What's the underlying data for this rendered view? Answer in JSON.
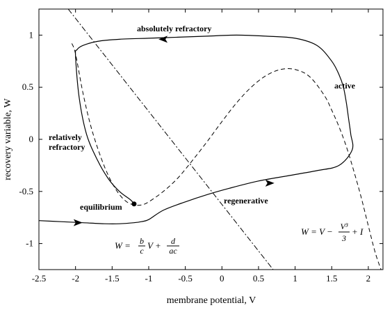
{
  "chart_data": {
    "type": "line",
    "title": "",
    "xlabel": "membrane potential, V",
    "ylabel": "recovery variable, W",
    "xlim": [
      -2.5,
      2.2
    ],
    "ylim": [
      -1.25,
      1.25
    ],
    "xticks": [
      -2.5,
      -2,
      -1.5,
      -1,
      -0.5,
      0,
      0.5,
      1,
      1.5,
      2
    ],
    "xtick_labels": [
      "-2.5",
      "-2",
      "-1.5",
      "-1",
      "-0.5",
      "0",
      "0.5",
      "1",
      "1.5",
      "2"
    ],
    "yticks": [
      -1,
      -0.5,
      0,
      0.5,
      1
    ],
    "ytick_labels": [
      "-1",
      "-0.5",
      "0",
      "0.5",
      "1"
    ],
    "grid": false,
    "series": [
      {
        "role": "trajectory",
        "style": "solid",
        "x": [
          -2.5,
          -2.2,
          -1.9,
          -1.6,
          -1.4,
          -1.2,
          -1.1,
          -1.0,
          -0.8,
          -0.5,
          -0.2,
          0.1,
          0.5,
          0.9,
          1.3,
          1.6,
          1.78,
          1.76,
          1.73,
          1.7,
          1.66,
          1.6,
          1.5,
          1.3,
          1.0,
          0.6,
          0.2,
          -0.2,
          -0.6,
          -1.0,
          -1.4,
          -1.7,
          -1.9,
          -1.98,
          -2.0,
          -1.95,
          -1.85,
          -1.7,
          -1.55,
          -1.4,
          -1.25,
          -1.2
        ],
        "y": [
          -0.78,
          -0.79,
          -0.8,
          -0.81,
          -0.81,
          -0.8,
          -0.79,
          -0.77,
          -0.68,
          -0.6,
          -0.53,
          -0.47,
          -0.4,
          -0.35,
          -0.3,
          -0.25,
          -0.1,
          0.05,
          0.2,
          0.35,
          0.5,
          0.62,
          0.75,
          0.9,
          0.97,
          0.99,
          1.0,
          0.99,
          0.98,
          0.97,
          0.96,
          0.94,
          0.9,
          0.86,
          0.8,
          0.4,
          0.05,
          -0.2,
          -0.38,
          -0.5,
          -0.58,
          -0.62
        ]
      },
      {
        "role": "V-nullcline",
        "style": "dashed",
        "equation": "W = V - V^3/3 + I",
        "x": [
          -2.05,
          -2.0,
          -1.9,
          -1.8,
          -1.7,
          -1.6,
          -1.5,
          -1.4,
          -1.3,
          -1.2,
          -1.1,
          -1.0,
          -0.8,
          -0.6,
          -0.4,
          -0.2,
          0.0,
          0.2,
          0.4,
          0.6,
          0.8,
          1.0,
          1.2,
          1.4,
          1.5,
          1.6,
          1.7,
          1.8,
          1.9,
          2.0,
          2.1,
          2.2
        ],
        "y": [
          0.92,
          0.82,
          0.45,
          0.15,
          -0.08,
          -0.27,
          -0.42,
          -0.53,
          -0.6,
          -0.63,
          -0.63,
          -0.6,
          -0.5,
          -0.37,
          -0.2,
          -0.02,
          0.17,
          0.35,
          0.5,
          0.61,
          0.67,
          0.67,
          0.6,
          0.42,
          0.28,
          0.12,
          -0.07,
          -0.3,
          -0.55,
          -0.83,
          -1.1,
          -1.3
        ]
      },
      {
        "role": "W-nullcline",
        "style": "dash-dot",
        "equation": "W = (b/c)V + d/(ac)",
        "x": [
          -2.1,
          0.7
        ],
        "y": [
          1.25,
          -1.25
        ]
      }
    ],
    "points": [
      {
        "label": "equilibrium",
        "x": -1.2,
        "y": -0.62
      }
    ],
    "arrows": [
      {
        "x": -1.97,
        "y": -0.8,
        "direction": "right"
      },
      {
        "x": 0.65,
        "y": -0.42,
        "direction": "right"
      },
      {
        "x": -0.8,
        "y": 0.96,
        "direction": "left"
      }
    ],
    "annotations": {
      "absolutely_refractory": "absolutely refractory",
      "active": "active",
      "relatively": "relatively",
      "refractory": "refractory",
      "equilibrium": "equilibrium",
      "regenerative": "regenerative"
    },
    "equations": {
      "w_nullcline": {
        "lhs": "W =",
        "frac1_num": "b",
        "frac1_den": "c",
        "var": "V +",
        "frac2_num": "d",
        "frac2_den": "ac"
      },
      "v_nullcline": {
        "lhs": "W = V −",
        "frac_num": "V³",
        "frac_den": "3",
        "tail": "+ I"
      }
    }
  }
}
